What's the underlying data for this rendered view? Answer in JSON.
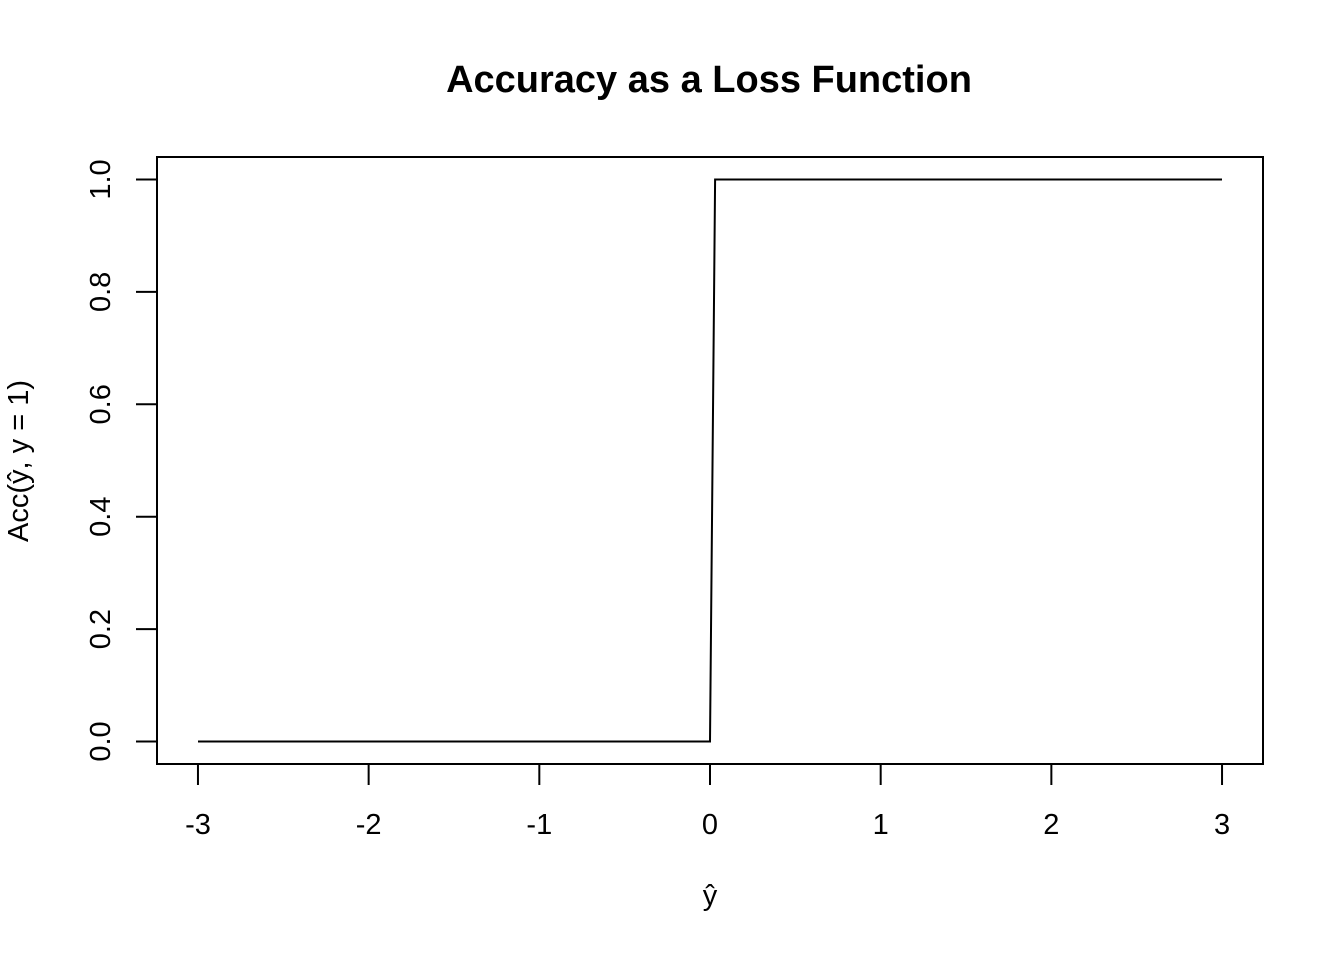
{
  "chart_data": {
    "type": "line",
    "title": "Accuracy as a Loss Function",
    "xlabel": "ŷ",
    "ylabel": "Acc(ŷ, y = 1)",
    "xlim": [
      -3.24,
      3.24
    ],
    "ylim": [
      -0.04,
      1.04
    ],
    "x_ticks": [
      -3,
      -2,
      -1,
      0,
      1,
      2,
      3
    ],
    "y_ticks": [
      0.0,
      0.2,
      0.4,
      0.6,
      0.8,
      1.0
    ],
    "x_tick_labels": [
      "-3",
      "-2",
      "-1",
      "0",
      "1",
      "2",
      "3"
    ],
    "y_tick_labels": [
      "0.0",
      "0.2",
      "0.4",
      "0.6",
      "0.8",
      "1.0"
    ],
    "grid": false,
    "series": [
      {
        "color": "#000000",
        "x": [
          -3,
          0.0,
          0.03,
          3
        ],
        "y": [
          0,
          0,
          1,
          1
        ]
      }
    ]
  }
}
